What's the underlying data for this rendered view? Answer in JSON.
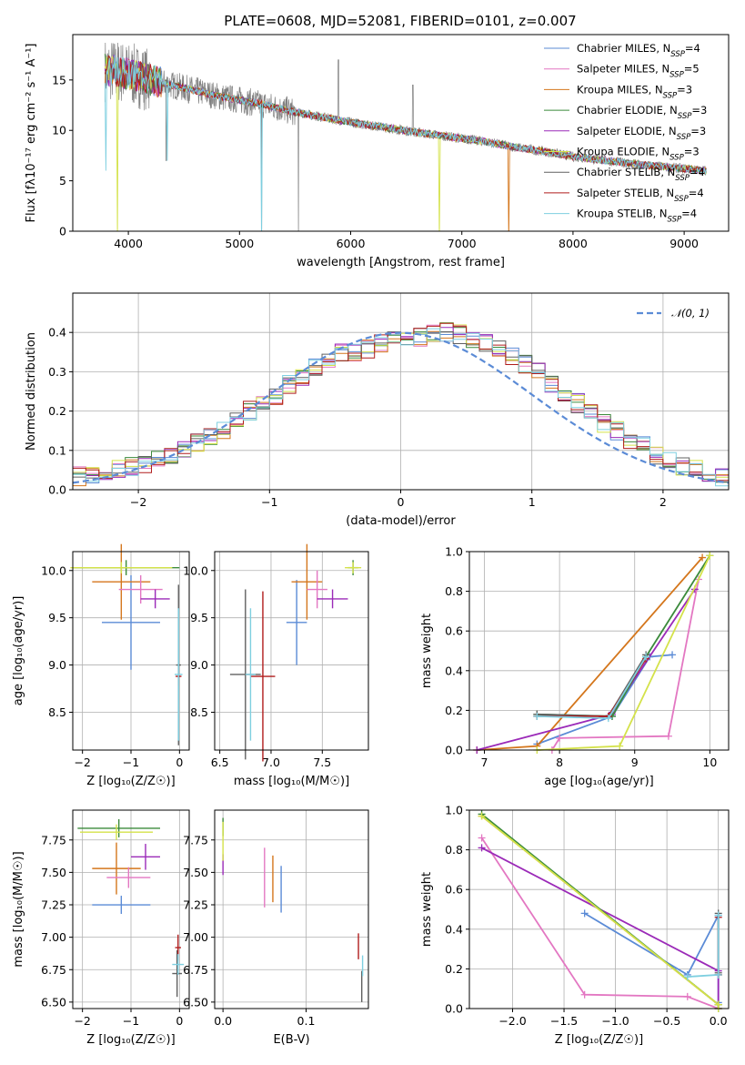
{
  "title": "PLATE=0608, MJD=52081, FIBERID=0101, z=0.007",
  "colors": {
    "Chabrier MILES": "#5b8bd6",
    "Salpeter MILES": "#e377c2",
    "Kroupa MILES": "#d4761c",
    "Chabrier ELODIE": "#3b8a3b",
    "Salpeter ELODIE": "#9b2ab8",
    "Kroupa ELODIE": "#d4e24a",
    "Chabrier STELIB": "#606060",
    "Salpeter STELIB": "#b01c1c",
    "Kroupa STELIB": "#7ecfe0",
    "gauss": "#5b8bd6"
  },
  "chart_data": [
    {
      "id": "spectrum",
      "type": "line",
      "title": "PLATE=0608, MJD=52081, FIBERID=0101, z=0.007",
      "xlabel": "wavelength [Angstrom, rest frame]",
      "ylabel": "Flux [fλ10⁻¹⁷ erg cm⁻² s⁻¹ A⁻¹]",
      "xlim": [
        3500,
        9400
      ],
      "ylim": [
        0,
        19.5
      ],
      "xticks": [
        "4000",
        "5000",
        "6000",
        "7000",
        "8000",
        "9000"
      ],
      "yticks": [
        "0",
        "5",
        "10",
        "15"
      ],
      "legend_position": "top-right",
      "series": [
        {
          "name": "Chabrier MILES",
          "nssp": "4"
        },
        {
          "name": "Salpeter MILES",
          "nssp": "5"
        },
        {
          "name": "Kroupa MILES",
          "nssp": "3"
        },
        {
          "name": "Chabrier ELODIE",
          "nssp": "3"
        },
        {
          "name": "Salpeter ELODIE",
          "nssp": "3"
        },
        {
          "name": "Kroupa ELODIE",
          "nssp": "3"
        },
        {
          "name": "Chabrier STELIB",
          "nssp": "4"
        },
        {
          "name": "Salpeter STELIB",
          "nssp": "4"
        },
        {
          "name": "Kroupa STELIB",
          "nssp": "4"
        }
      ],
      "continuum": {
        "x": [
          3790,
          3900,
          4000,
          4200,
          4500,
          4800,
          5000,
          5200,
          5500,
          5800,
          6000,
          6300,
          6600,
          6800,
          7000,
          7200,
          7500,
          7800,
          8000,
          8300,
          8600,
          8900,
          9200
        ],
        "y": [
          16.0,
          15.9,
          15.6,
          15.0,
          14.2,
          13.4,
          13.0,
          12.6,
          11.8,
          11.2,
          10.8,
          10.3,
          9.8,
          9.5,
          9.2,
          8.9,
          8.3,
          7.8,
          7.4,
          7.0,
          6.6,
          6.3,
          6.0
        ]
      }
    },
    {
      "id": "residuals",
      "type": "area",
      "xlabel": "(data-model)/error",
      "ylabel": "Normed distribution",
      "xlim": [
        -2.5,
        2.5
      ],
      "ylim": [
        0,
        0.5
      ],
      "xticks": [
        "−2",
        "−1",
        "0",
        "1",
        "2"
      ],
      "yticks": [
        "0.0",
        "0.1",
        "0.2",
        "0.3",
        "0.4"
      ],
      "legend": "𝒩(0, 1)",
      "legend_position": "top-right",
      "bin_width": 0.1,
      "bin_start": -2.5,
      "hist_base": [
        0.035,
        0.04,
        0.05,
        0.055,
        0.06,
        0.065,
        0.08,
        0.09,
        0.1,
        0.12,
        0.14,
        0.15,
        0.18,
        0.2,
        0.22,
        0.24,
        0.27,
        0.29,
        0.31,
        0.33,
        0.35,
        0.35,
        0.36,
        0.37,
        0.385,
        0.39,
        0.39,
        0.4,
        0.4,
        0.395,
        0.385,
        0.37,
        0.36,
        0.34,
        0.32,
        0.3,
        0.27,
        0.25,
        0.22,
        0.2,
        0.17,
        0.15,
        0.125,
        0.11,
        0.09,
        0.07,
        0.06,
        0.05,
        0.04,
        0.03
      ]
    },
    {
      "id": "age-vs-Z",
      "type": "scatter",
      "xlabel": "Z [log₁₀(Z/Z☉)]",
      "ylabel": "age  [log₁₀(age/yr)]",
      "xlim": [
        -2.2,
        0.2
      ],
      "ylim": [
        8.1,
        10.2
      ],
      "xticks": [
        "−2",
        "−1",
        "0"
      ],
      "yticks": [
        "8.5",
        "9.0",
        "9.5",
        "10.0"
      ],
      "points": [
        {
          "s": "Chabrier MILES",
          "x": -1.0,
          "y": 9.45,
          "ex": 0.6,
          "ey": 0.5
        },
        {
          "s": "Kroupa MILES",
          "x": -1.2,
          "y": 9.88,
          "ex": 0.6,
          "ey": 0.4
        },
        {
          "s": "Salpeter MILES",
          "x": -0.8,
          "y": 9.8,
          "ex": 0.45,
          "ey": 0.15
        },
        {
          "s": "Salpeter ELODIE",
          "x": -0.5,
          "y": 9.7,
          "ex": 0.3,
          "ey": 0.1
        },
        {
          "s": "Chabrier ELODIE",
          "x": -1.1,
          "y": 10.03,
          "ex": 1.1,
          "ey": 0.08
        },
        {
          "s": "Kroupa ELODIE",
          "x": -1.2,
          "y": 10.03,
          "ex": 1.05,
          "ey": 0.06
        },
        {
          "s": "Chabrier STELIB",
          "x": -0.02,
          "y": 9.0,
          "ex": 0.05,
          "ey": 0.85
        },
        {
          "s": "Salpeter STELIB",
          "x": -0.02,
          "y": 8.88,
          "ex": 0.06,
          "ey": 0.1
        },
        {
          "s": "Kroupa STELIB",
          "x": -0.02,
          "y": 8.9,
          "ex": 0.08,
          "ey": 0.7
        }
      ]
    },
    {
      "id": "age-vs-mass",
      "type": "scatter",
      "xlabel": "mass [log₁₀(M/M☉)]",
      "ylabel": "",
      "xlim": [
        6.45,
        7.95
      ],
      "ylim": [
        8.1,
        10.2
      ],
      "xticks": [
        "6.5",
        "7.0",
        "7.5"
      ],
      "yticks": [
        "8.5",
        "9.0",
        "9.5",
        "10.0"
      ],
      "points": [
        {
          "s": "Chabrier MILES",
          "x": 7.25,
          "y": 9.45,
          "ex": 0.1,
          "ey": 0.45
        },
        {
          "s": "Kroupa MILES",
          "x": 7.35,
          "y": 9.88,
          "ex": 0.15,
          "ey": 0.4
        },
        {
          "s": "Salpeter MILES",
          "x": 7.45,
          "y": 9.8,
          "ex": 0.1,
          "ey": 0.2
        },
        {
          "s": "Salpeter ELODIE",
          "x": 7.6,
          "y": 9.7,
          "ex": 0.15,
          "ey": 0.1
        },
        {
          "s": "Chabrier ELODIE",
          "x": 7.8,
          "y": 10.03,
          "ex": 0.05,
          "ey": 0.08
        },
        {
          "s": "Kroupa ELODIE",
          "x": 7.8,
          "y": 10.03,
          "ex": 0.08,
          "ey": 0.06
        },
        {
          "s": "Chabrier STELIB",
          "x": 6.75,
          "y": 8.9,
          "ex": 0.15,
          "ey": 0.9
        },
        {
          "s": "Salpeter STELIB",
          "x": 6.92,
          "y": 8.88,
          "ex": 0.12,
          "ey": 0.9
        },
        {
          "s": "Kroupa STELIB",
          "x": 6.8,
          "y": 8.9,
          "ex": 0.05,
          "ey": 0.7
        }
      ]
    },
    {
      "id": "mass-weight-vs-age",
      "type": "line",
      "xlabel": "age  [log₁₀(age/yr)]",
      "ylabel": "mass weight",
      "xlim": [
        6.8,
        10.25
      ],
      "ylim": [
        0,
        1.0
      ],
      "xticks": [
        "7",
        "8",
        "9",
        "10"
      ],
      "yticks": [
        "0.0",
        "0.2",
        "0.4",
        "0.6",
        "0.8",
        "1.0"
      ],
      "series": [
        {
          "s": "Chabrier MILES",
          "x": [
            7.7,
            8.7,
            9.2,
            9.5
          ],
          "y": [
            0.03,
            0.17,
            0.47,
            0.48
          ]
        },
        {
          "s": "Kroupa MILES",
          "x": [
            6.9,
            7.7,
            9.9
          ],
          "y": [
            0.0,
            0.02,
            0.97
          ]
        },
        {
          "s": "Salpeter MILES",
          "x": [
            7.9,
            8.0,
            9.45,
            9.85
          ],
          "y": [
            0.0,
            0.06,
            0.07,
            0.86
          ]
        },
        {
          "s": "Salpeter ELODIE",
          "x": [
            6.9,
            8.7,
            8.7,
            9.8
          ],
          "y": [
            0.0,
            0.18,
            0.19,
            0.81
          ]
        },
        {
          "s": "Chabrier ELODIE",
          "x": [
            7.7,
            8.7,
            9.15,
            10.0
          ],
          "y": [
            0.18,
            0.17,
            0.47,
            0.98
          ]
        },
        {
          "s": "Kroupa ELODIE",
          "x": [
            7.7,
            8.8,
            10.0
          ],
          "y": [
            0.0,
            0.02,
            0.98
          ]
        },
        {
          "s": "Chabrier STELIB",
          "x": [
            7.7,
            8.65,
            9.15
          ],
          "y": [
            0.18,
            0.17,
            0.48
          ]
        },
        {
          "s": "Salpeter STELIB",
          "x": [
            7.7,
            8.65,
            9.15
          ],
          "y": [
            0.17,
            0.17,
            0.46
          ]
        },
        {
          "s": "Kroupa STELIB",
          "x": [
            7.7,
            8.65,
            9.15
          ],
          "y": [
            0.17,
            0.16,
            0.47
          ]
        }
      ]
    },
    {
      "id": "mass-vs-Z",
      "type": "scatter",
      "xlabel": "Z [log₁₀(Z/Z☉)]",
      "ylabel": "mass [log₁₀(M/M☉)]",
      "xlim": [
        -2.2,
        0.2
      ],
      "ylim": [
        6.45,
        7.98
      ],
      "xticks": [
        "−2",
        "−1",
        "0"
      ],
      "yticks": [
        "6.50",
        "6.75",
        "7.00",
        "7.25",
        "7.50",
        "7.75"
      ],
      "points": [
        {
          "s": "Chabrier MILES",
          "x": -1.2,
          "y": 7.25,
          "ex": 0.6,
          "ey": 0.07
        },
        {
          "s": "Kroupa MILES",
          "x": -1.3,
          "y": 7.53,
          "ex": 0.5,
          "ey": 0.2
        },
        {
          "s": "Salpeter MILES",
          "x": -1.05,
          "y": 7.46,
          "ex": 0.45,
          "ey": 0.08
        },
        {
          "s": "Salpeter ELODIE",
          "x": -0.7,
          "y": 7.62,
          "ex": 0.3,
          "ey": 0.1
        },
        {
          "s": "Chabrier ELODIE",
          "x": -1.25,
          "y": 7.84,
          "ex": 0.85,
          "ey": 0.07
        },
        {
          "s": "Kroupa ELODIE",
          "x": -1.3,
          "y": 7.81,
          "ex": 0.75,
          "ey": 0.06
        },
        {
          "s": "Chabrier STELIB",
          "x": -0.05,
          "y": 6.72,
          "ex": 0.1,
          "ey": 0.18
        },
        {
          "s": "Salpeter STELIB",
          "x": -0.03,
          "y": 6.92,
          "ex": 0.06,
          "ey": 0.1
        },
        {
          "s": "Kroupa STELIB",
          "x": -0.03,
          "y": 6.79,
          "ex": 0.12,
          "ey": 0.08
        }
      ]
    },
    {
      "id": "mass-vs-EBV",
      "type": "scatter",
      "xlabel": "E(B-V)",
      "ylabel": "",
      "xlim": [
        -0.01,
        0.175
      ],
      "ylim": [
        6.45,
        7.98
      ],
      "xticks": [
        "0.0",
        "0.1"
      ],
      "yticks": [
        "6.50",
        "6.75",
        "7.00",
        "7.25",
        "7.50",
        "7.75"
      ],
      "points": [
        {
          "s": "Chabrier MILES",
          "x": 0.07,
          "y": 7.37,
          "ex": 0.0,
          "ey": 0.18
        },
        {
          "s": "Kroupa MILES",
          "x": 0.06,
          "y": 7.45,
          "ex": 0.0,
          "ey": 0.18
        },
        {
          "s": "Salpeter MILES",
          "x": 0.05,
          "y": 7.46,
          "ex": 0.0,
          "ey": 0.23
        },
        {
          "s": "Salpeter ELODIE",
          "x": 0.0,
          "y": 7.56,
          "ex": 0.0,
          "ey": 0.08
        },
        {
          "s": "Chabrier ELODIE",
          "x": 0.0,
          "y": 7.85,
          "ex": 0.0,
          "ey": 0.07
        },
        {
          "s": "Kroupa ELODIE",
          "x": 0.0,
          "y": 7.74,
          "ex": 0.0,
          "ey": 0.15
        },
        {
          "s": "Chabrier STELIB",
          "x": 0.167,
          "y": 6.62,
          "ex": 0.0,
          "ey": 0.12
        },
        {
          "s": "Salpeter STELIB",
          "x": 0.163,
          "y": 6.93,
          "ex": 0.0,
          "ey": 0.1
        },
        {
          "s": "Kroupa STELIB",
          "x": 0.168,
          "y": 6.78,
          "ex": 0.0,
          "ey": 0.08
        }
      ]
    },
    {
      "id": "mass-weight-vs-Z",
      "type": "line",
      "xlabel": "Z [log₁₀(Z/Z☉)]",
      "ylabel": "mass weight",
      "xlim": [
        -2.42,
        0.1
      ],
      "ylim": [
        0,
        1.0
      ],
      "xticks": [
        "−2.0",
        "−1.5",
        "−1.0",
        "−0.5",
        "0.0"
      ],
      "yticks": [
        "0.0",
        "0.2",
        "0.4",
        "0.6",
        "0.8",
        "1.0"
      ],
      "series": [
        {
          "s": "Chabrier MILES",
          "x": [
            -1.3,
            -0.3,
            0.0,
            0.0
          ],
          "y": [
            0.48,
            0.17,
            0.47,
            0.03
          ]
        },
        {
          "s": "Kroupa MILES",
          "x": [
            -2.3,
            0.0,
            0.0
          ],
          "y": [
            0.97,
            0.02,
            0.0
          ]
        },
        {
          "s": "Salpeter MILES",
          "x": [
            -2.3,
            -1.3,
            -0.3,
            0.0
          ],
          "y": [
            0.86,
            0.07,
            0.06,
            0.0
          ]
        },
        {
          "s": "Salpeter ELODIE",
          "x": [
            -2.3,
            0.0,
            0.0
          ],
          "y": [
            0.81,
            0.19,
            0.0
          ]
        },
        {
          "s": "Chabrier ELODIE",
          "x": [
            -2.3,
            0.0,
            0.0
          ],
          "y": [
            0.98,
            0.02,
            0.0
          ]
        },
        {
          "s": "Kroupa ELODIE",
          "x": [
            -2.3,
            0.0,
            0.0
          ],
          "y": [
            0.97,
            0.02,
            0.0
          ]
        },
        {
          "s": "Chabrier STELIB",
          "x": [
            0.0,
            0.0,
            0.0
          ],
          "y": [
            0.48,
            0.18,
            0.17
          ]
        },
        {
          "s": "Salpeter STELIB",
          "x": [
            0.0,
            0.0
          ],
          "y": [
            0.46,
            0.17
          ]
        },
        {
          "s": "Kroupa STELIB",
          "x": [
            -0.3,
            0.0,
            0.0
          ],
          "y": [
            0.16,
            0.17,
            0.47
          ]
        }
      ]
    }
  ]
}
